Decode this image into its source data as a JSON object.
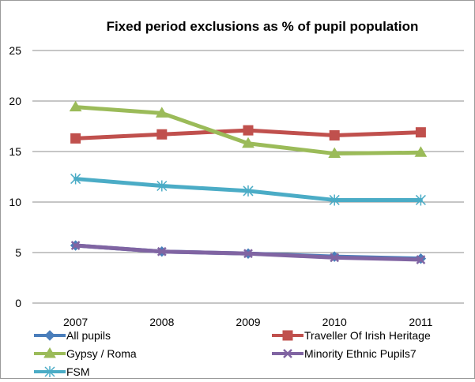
{
  "chart_data": {
    "type": "line",
    "title": "Fixed period exclusions as % of pupil population",
    "xlabel": "",
    "ylabel": "",
    "categories": [
      "2007",
      "2008",
      "2009",
      "2010",
      "2011"
    ],
    "ylim": [
      0,
      25
    ],
    "yticks": [
      "0",
      "5",
      "10",
      "15",
      "20",
      "25"
    ],
    "grid": true,
    "legend_position": "bottom",
    "series": [
      {
        "name": "All pupils",
        "values": [
          5.7,
          5.1,
          4.9,
          4.6,
          4.4
        ],
        "color": "#4a7ebb",
        "marker": "diamond"
      },
      {
        "name": "Traveller Of Irish Heritage",
        "values": [
          16.3,
          16.7,
          17.1,
          16.6,
          16.9
        ],
        "color": "#c0504d",
        "marker": "square"
      },
      {
        "name": "Gypsy / Roma",
        "values": [
          19.4,
          18.8,
          15.8,
          14.8,
          14.9
        ],
        "color": "#9bbb59",
        "marker": "triangle"
      },
      {
        "name": "Minority Ethnic Pupils7",
        "values": [
          5.7,
          5.1,
          4.9,
          4.5,
          4.3
        ],
        "color": "#8064a2",
        "marker": "x"
      },
      {
        "name": "FSM",
        "values": [
          12.3,
          11.6,
          11.1,
          10.2,
          10.2
        ],
        "color": "#4bacc6",
        "marker": "star"
      }
    ]
  }
}
